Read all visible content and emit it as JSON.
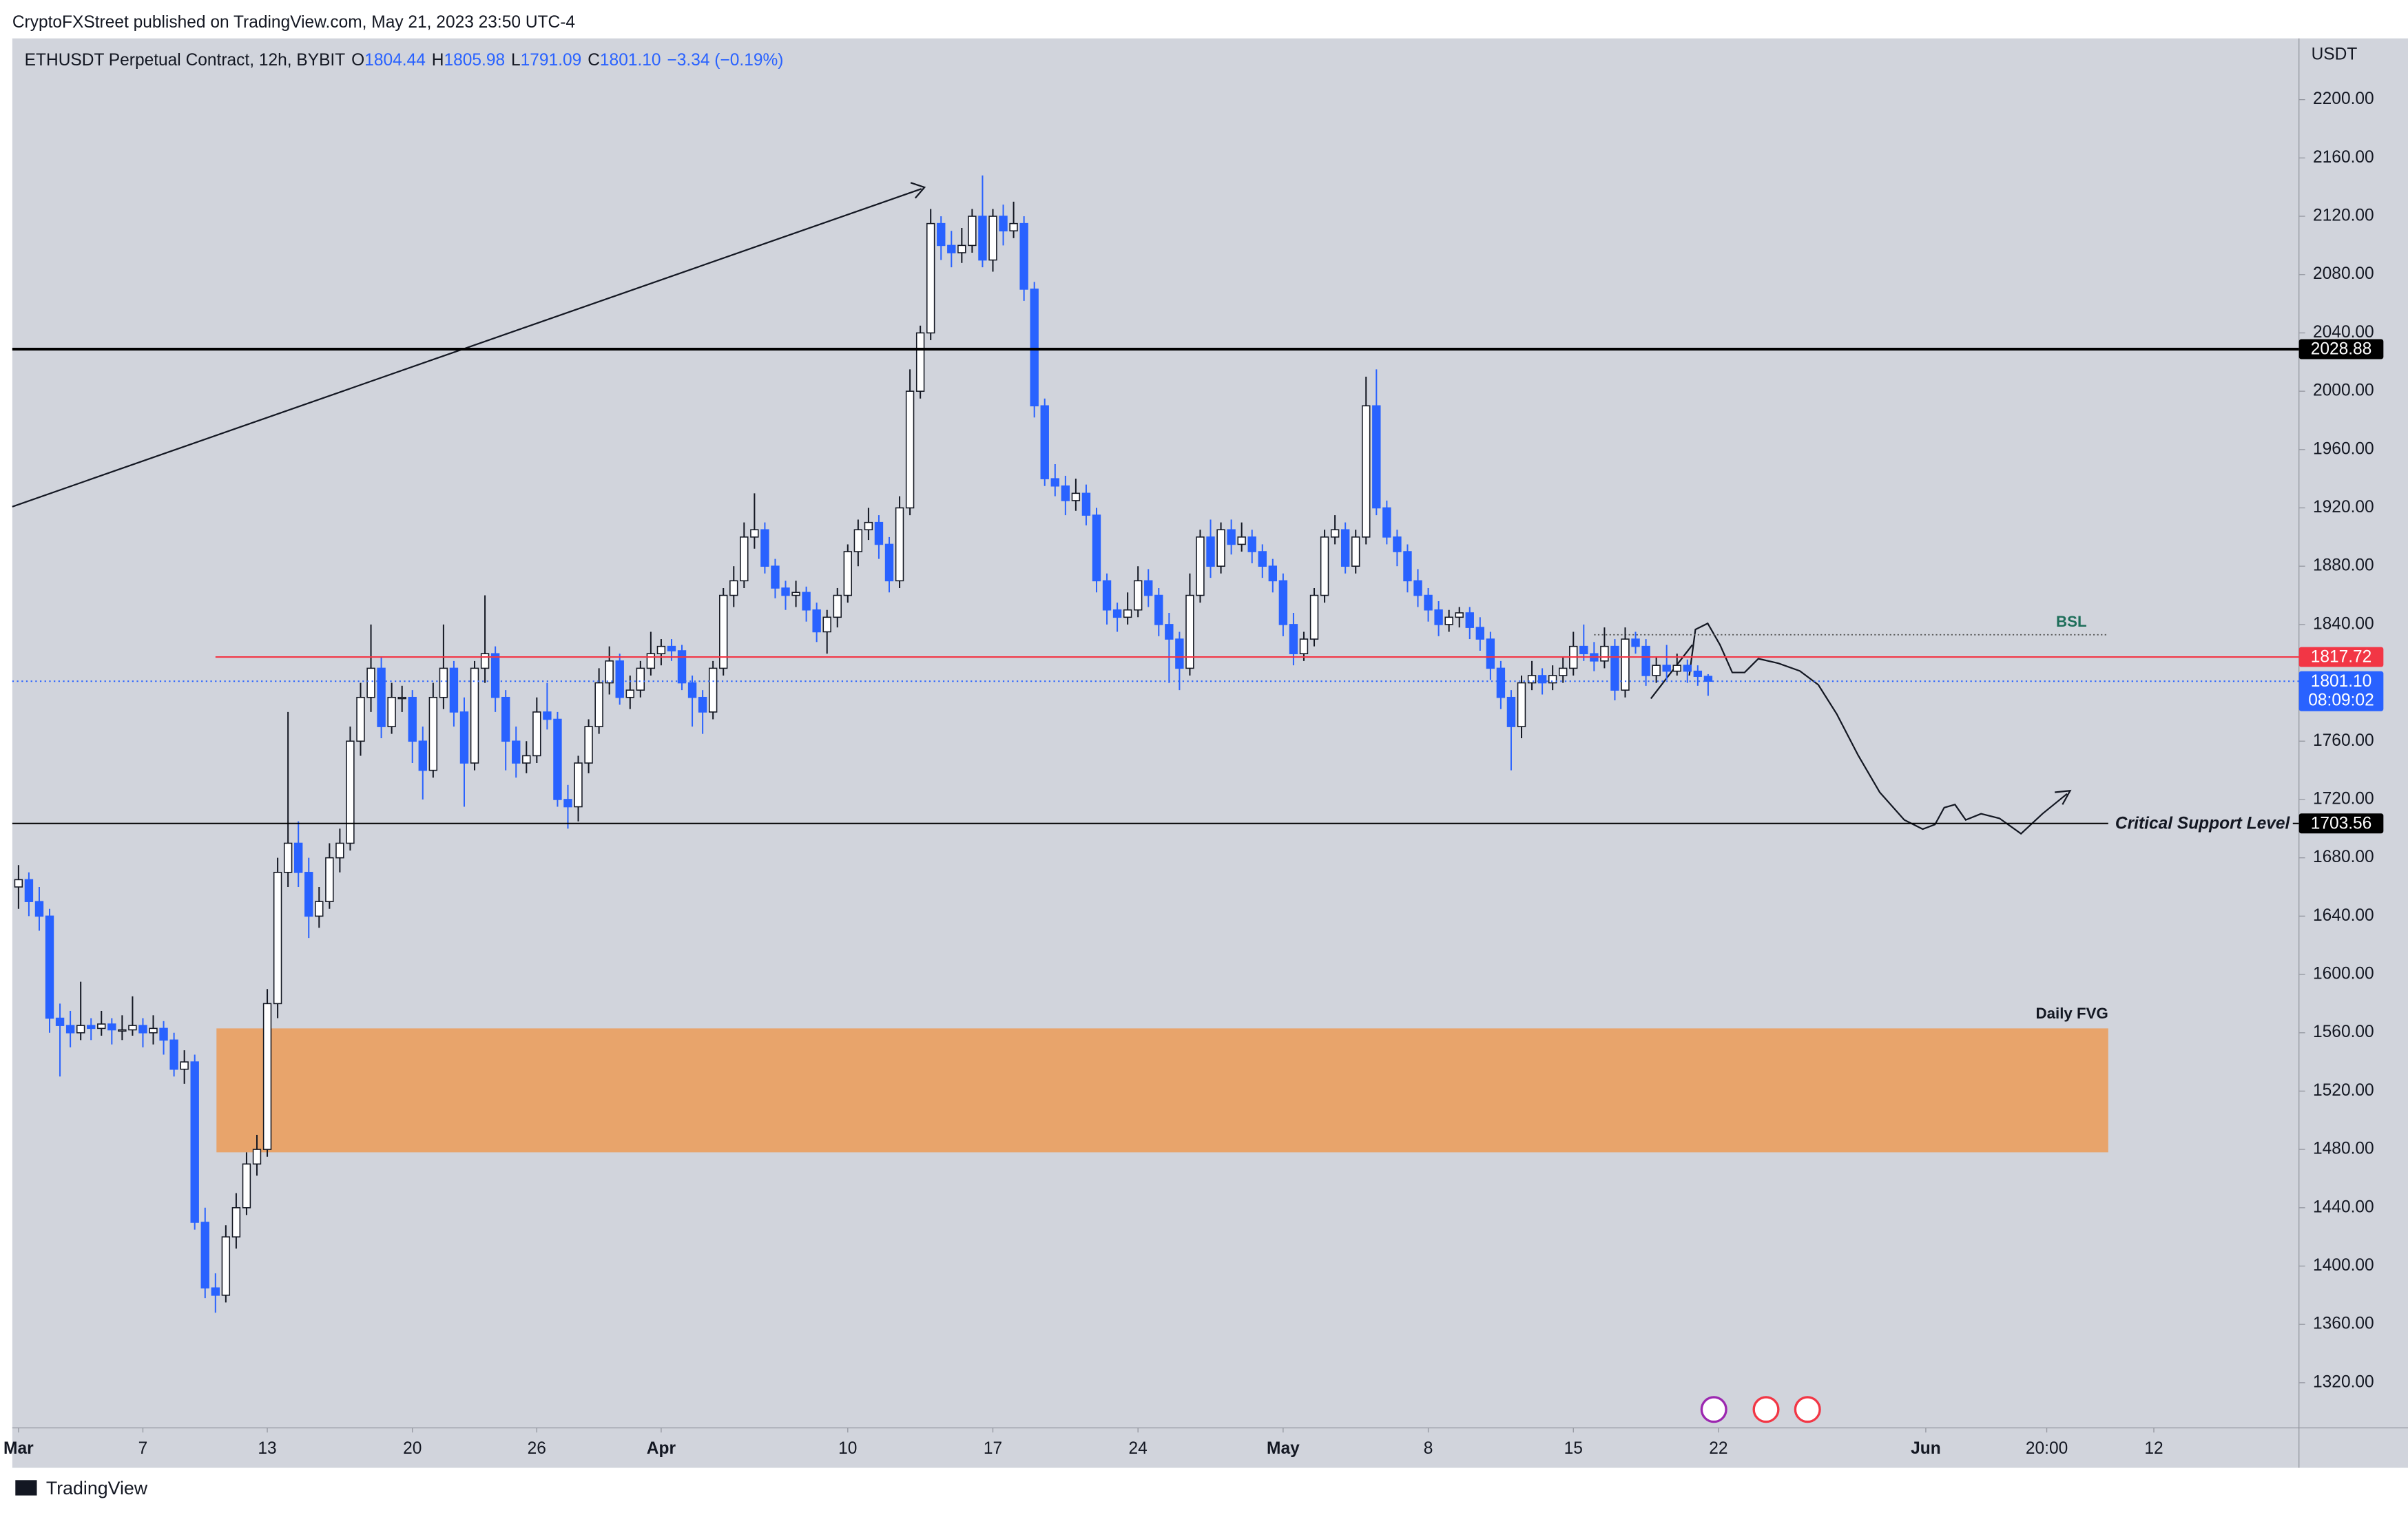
{
  "header": {
    "byline": "CryptoFXStreet published on TradingView.com, May 21, 2023 23:50 UTC-4",
    "brand": "TradingView"
  },
  "chart_data": {
    "type": "candlestick",
    "title": "ETHUSDT Perpetual Contract, 12h, BYBIT",
    "legend": [
      {
        "key": "O",
        "value": "1804.44"
      },
      {
        "key": "H",
        "value": "1805.98"
      },
      {
        "key": "L",
        "value": "1791.09"
      },
      {
        "key": "C",
        "value": "1801.10"
      }
    ],
    "change_label": "−3.34 (−0.19%)",
    "y_axis_label": "USDT",
    "up_color": "#ffffff",
    "down_color": "#2962ff",
    "wick_color": "#131722",
    "ylim": [
      1289,
      2242
    ],
    "yticks": [
      {
        "value": 1320,
        "label": "1320.00"
      },
      {
        "value": 1360,
        "label": "1360.00"
      },
      {
        "value": 1400,
        "label": "1400.00"
      },
      {
        "value": 1440,
        "label": "1440.00"
      },
      {
        "value": 1480,
        "label": "1480.00"
      },
      {
        "value": 1520,
        "label": "1520.00"
      },
      {
        "value": 1560,
        "label": "1560.00"
      },
      {
        "value": 1600,
        "label": "1600.00"
      },
      {
        "value": 1640,
        "label": "1640.00"
      },
      {
        "value": 1680,
        "label": "1680.00"
      },
      {
        "value": 1720,
        "label": "1720.00"
      },
      {
        "value": 1760,
        "label": "1760.00"
      },
      {
        "value": 1800,
        "label": "1800.00"
      },
      {
        "value": 1840,
        "label": "1840.00"
      },
      {
        "value": 1880,
        "label": "1880.00"
      },
      {
        "value": 1920,
        "label": "1920.00"
      },
      {
        "value": 1960,
        "label": "1960.00"
      },
      {
        "value": 2000,
        "label": "2000.00"
      },
      {
        "value": 2040,
        "label": "2040.00"
      },
      {
        "value": 2080,
        "label": "2080.00"
      },
      {
        "value": 2120,
        "label": "2120.00"
      },
      {
        "value": 2160,
        "label": "2160.00"
      },
      {
        "value": 2200,
        "label": "2200.00"
      }
    ],
    "xlim": [
      -0.6,
      220
    ],
    "xticks": [
      {
        "value": 0,
        "label": "Mar"
      },
      {
        "value": 12,
        "label": "7"
      },
      {
        "value": 24,
        "label": "13"
      },
      {
        "value": 38,
        "label": "20"
      },
      {
        "value": 50,
        "label": "26"
      },
      {
        "value": 62,
        "label": "Apr"
      },
      {
        "value": 80,
        "label": "10"
      },
      {
        "value": 94,
        "label": "17"
      },
      {
        "value": 108,
        "label": "24"
      },
      {
        "value": 122,
        "label": "May"
      },
      {
        "value": 136,
        "label": "8"
      },
      {
        "value": 150,
        "label": "15"
      },
      {
        "value": 164,
        "label": "22"
      },
      {
        "value": 184,
        "label": "Jun"
      },
      {
        "value": 195.67,
        "label": "20:00"
      },
      {
        "value": 206,
        "label": "12"
      }
    ],
    "grid": false,
    "levels": [
      {
        "value": 2028.88,
        "color": "#000000",
        "tag_color": "#000000"
      },
      {
        "value": 1817.72,
        "color": "#f23645",
        "tag_color": "#f23645",
        "from": 19
      },
      {
        "value": 1801.1,
        "label": "1801.10",
        "countdown": "08:09:02",
        "color": "#2962ff",
        "tag_color": "#2962ff",
        "dotted": true
      },
      {
        "value": 1703.56,
        "color": "#000000",
        "tag_color": "#000000",
        "to": 201.6,
        "name": "Critical Support Level"
      }
    ],
    "liquidity": {
      "name": "BSL",
      "value": 1833,
      "from": 152,
      "to": 201.6,
      "color": "#1e6e5a"
    },
    "zone": {
      "name": "Daily FVG",
      "low": 1478,
      "high": 1563,
      "from": 19.1,
      "to": 201.6,
      "color": "#e8a46b"
    },
    "candles": [
      [
        1660,
        1675,
        1645,
        1665
      ],
      [
        1665,
        1670,
        1640,
        1650
      ],
      [
        1650,
        1660,
        1630,
        1640
      ],
      [
        1640,
        1645,
        1560,
        1570
      ],
      [
        1570,
        1580,
        1530,
        1565
      ],
      [
        1565,
        1575,
        1550,
        1560
      ],
      [
        1560,
        1595,
        1555,
        1565
      ],
      [
        1565,
        1570,
        1555,
        1563
      ],
      [
        1563,
        1575,
        1558,
        1566
      ],
      [
        1566,
        1570,
        1552,
        1562
      ],
      [
        1562,
        1572,
        1555,
        1562
      ],
      [
        1562,
        1585,
        1558,
        1565
      ],
      [
        1565,
        1570,
        1550,
        1560
      ],
      [
        1560,
        1572,
        1552,
        1563
      ],
      [
        1563,
        1568,
        1545,
        1555
      ],
      [
        1555,
        1560,
        1530,
        1535
      ],
      [
        1535,
        1548,
        1525,
        1540
      ],
      [
        1540,
        1545,
        1425,
        1430
      ],
      [
        1430,
        1440,
        1378,
        1385
      ],
      [
        1385,
        1395,
        1368,
        1380
      ],
      [
        1380,
        1428,
        1375,
        1420
      ],
      [
        1420,
        1450,
        1412,
        1440
      ],
      [
        1440,
        1478,
        1435,
        1470
      ],
      [
        1470,
        1490,
        1462,
        1480
      ],
      [
        1480,
        1590,
        1475,
        1580
      ],
      [
        1580,
        1680,
        1570,
        1670
      ],
      [
        1670,
        1780,
        1660,
        1690
      ],
      [
        1690,
        1705,
        1660,
        1670
      ],
      [
        1670,
        1680,
        1625,
        1640
      ],
      [
        1640,
        1660,
        1632,
        1650
      ],
      [
        1650,
        1690,
        1645,
        1680
      ],
      [
        1680,
        1700,
        1670,
        1690
      ],
      [
        1690,
        1770,
        1685,
        1760
      ],
      [
        1760,
        1800,
        1750,
        1790
      ],
      [
        1790,
        1840,
        1780,
        1810
      ],
      [
        1810,
        1818,
        1762,
        1770
      ],
      [
        1770,
        1800,
        1765,
        1790
      ],
      [
        1790,
        1798,
        1780,
        1790
      ],
      [
        1790,
        1795,
        1745,
        1760
      ],
      [
        1760,
        1770,
        1720,
        1740
      ],
      [
        1740,
        1800,
        1735,
        1790
      ],
      [
        1790,
        1840,
        1782,
        1810
      ],
      [
        1810,
        1815,
        1770,
        1780
      ],
      [
        1780,
        1790,
        1715,
        1745
      ],
      [
        1745,
        1815,
        1740,
        1810
      ],
      [
        1810,
        1860,
        1800,
        1820
      ],
      [
        1820,
        1825,
        1780,
        1790
      ],
      [
        1790,
        1795,
        1740,
        1760
      ],
      [
        1760,
        1770,
        1735,
        1745
      ],
      [
        1745,
        1760,
        1738,
        1750
      ],
      [
        1750,
        1790,
        1745,
        1780
      ],
      [
        1780,
        1800,
        1768,
        1775
      ],
      [
        1775,
        1780,
        1715,
        1720
      ],
      [
        1720,
        1730,
        1700,
        1715
      ],
      [
        1715,
        1750,
        1705,
        1745
      ],
      [
        1745,
        1775,
        1738,
        1770
      ],
      [
        1770,
        1810,
        1765,
        1800
      ],
      [
        1800,
        1825,
        1792,
        1815
      ],
      [
        1815,
        1820,
        1785,
        1790
      ],
      [
        1790,
        1805,
        1782,
        1795
      ],
      [
        1795,
        1815,
        1790,
        1810
      ],
      [
        1810,
        1835,
        1805,
        1820
      ],
      [
        1820,
        1830,
        1812,
        1825
      ],
      [
        1825,
        1830,
        1815,
        1822
      ],
      [
        1822,
        1826,
        1795,
        1800
      ],
      [
        1800,
        1805,
        1770,
        1790
      ],
      [
        1790,
        1795,
        1765,
        1780
      ],
      [
        1780,
        1815,
        1775,
        1810
      ],
      [
        1810,
        1865,
        1805,
        1860
      ],
      [
        1860,
        1880,
        1852,
        1870
      ],
      [
        1870,
        1910,
        1865,
        1900
      ],
      [
        1900,
        1930,
        1892,
        1905
      ],
      [
        1905,
        1910,
        1875,
        1880
      ],
      [
        1880,
        1885,
        1858,
        1865
      ],
      [
        1865,
        1870,
        1850,
        1860
      ],
      [
        1860,
        1870,
        1852,
        1862
      ],
      [
        1862,
        1866,
        1842,
        1850
      ],
      [
        1850,
        1855,
        1828,
        1835
      ],
      [
        1835,
        1850,
        1820,
        1845
      ],
      [
        1845,
        1865,
        1838,
        1860
      ],
      [
        1860,
        1895,
        1855,
        1890
      ],
      [
        1890,
        1912,
        1880,
        1905
      ],
      [
        1905,
        1920,
        1898,
        1910
      ],
      [
        1910,
        1915,
        1885,
        1895
      ],
      [
        1895,
        1900,
        1862,
        1870
      ],
      [
        1870,
        1928,
        1865,
        1920
      ],
      [
        1920,
        2015,
        1915,
        2000
      ],
      [
        2000,
        2045,
        1995,
        2040
      ],
      [
        2040,
        2125,
        2035,
        2115
      ],
      [
        2115,
        2120,
        2090,
        2100
      ],
      [
        2100,
        2110,
        2085,
        2095
      ],
      [
        2095,
        2112,
        2088,
        2100
      ],
      [
        2100,
        2125,
        2095,
        2120
      ],
      [
        2120,
        2148,
        2085,
        2090
      ],
      [
        2090,
        2125,
        2082,
        2120
      ],
      [
        2120,
        2128,
        2100,
        2110
      ],
      [
        2110,
        2130,
        2105,
        2115
      ],
      [
        2115,
        2120,
        2062,
        2070
      ],
      [
        2070,
        2075,
        1982,
        1990
      ],
      [
        1990,
        1995,
        1935,
        1940
      ],
      [
        1940,
        1950,
        1928,
        1935
      ],
      [
        1935,
        1942,
        1915,
        1925
      ],
      [
        1925,
        1940,
        1918,
        1930
      ],
      [
        1930,
        1936,
        1908,
        1915
      ],
      [
        1915,
        1920,
        1862,
        1870
      ],
      [
        1870,
        1875,
        1840,
        1850
      ],
      [
        1850,
        1855,
        1835,
        1845
      ],
      [
        1845,
        1862,
        1840,
        1850
      ],
      [
        1850,
        1880,
        1845,
        1870
      ],
      [
        1870,
        1878,
        1852,
        1860
      ],
      [
        1860,
        1865,
        1832,
        1840
      ],
      [
        1840,
        1848,
        1800,
        1830
      ],
      [
        1830,
        1835,
        1795,
        1810
      ],
      [
        1810,
        1875,
        1805,
        1860
      ],
      [
        1860,
        1905,
        1855,
        1900
      ],
      [
        1900,
        1912,
        1872,
        1880
      ],
      [
        1880,
        1910,
        1875,
        1905
      ],
      [
        1905,
        1912,
        1888,
        1895
      ],
      [
        1895,
        1910,
        1890,
        1900
      ],
      [
        1900,
        1905,
        1882,
        1890
      ],
      [
        1890,
        1895,
        1872,
        1880
      ],
      [
        1880,
        1885,
        1862,
        1870
      ],
      [
        1870,
        1875,
        1832,
        1840
      ],
      [
        1840,
        1848,
        1812,
        1820
      ],
      [
        1820,
        1835,
        1815,
        1830
      ],
      [
        1830,
        1865,
        1825,
        1860
      ],
      [
        1860,
        1905,
        1855,
        1900
      ],
      [
        1900,
        1915,
        1895,
        1905
      ],
      [
        1905,
        1910,
        1875,
        1880
      ],
      [
        1880,
        1905,
        1875,
        1900
      ],
      [
        1900,
        2010,
        1895,
        1990
      ],
      [
        1990,
        2015,
        1915,
        1920
      ],
      [
        1920,
        1925,
        1895,
        1900
      ],
      [
        1900,
        1905,
        1880,
        1890
      ],
      [
        1890,
        1895,
        1862,
        1870
      ],
      [
        1870,
        1878,
        1852,
        1860
      ],
      [
        1860,
        1865,
        1842,
        1850
      ],
      [
        1850,
        1856,
        1832,
        1840
      ],
      [
        1840,
        1850,
        1835,
        1845
      ],
      [
        1845,
        1852,
        1838,
        1848
      ],
      [
        1848,
        1852,
        1830,
        1838
      ],
      [
        1838,
        1845,
        1822,
        1830
      ],
      [
        1830,
        1835,
        1802,
        1810
      ],
      [
        1810,
        1815,
        1782,
        1790
      ],
      [
        1790,
        1795,
        1740,
        1770
      ],
      [
        1770,
        1805,
        1762,
        1800
      ],
      [
        1800,
        1815,
        1795,
        1805
      ],
      [
        1805,
        1810,
        1792,
        1800
      ],
      [
        1800,
        1812,
        1795,
        1805
      ],
      [
        1805,
        1818,
        1800,
        1810
      ],
      [
        1810,
        1835,
        1805,
        1825
      ],
      [
        1825,
        1840,
        1815,
        1820
      ],
      [
        1820,
        1828,
        1808,
        1815
      ],
      [
        1815,
        1838,
        1810,
        1825
      ],
      [
        1825,
        1830,
        1788,
        1795
      ],
      [
        1795,
        1838,
        1790,
        1830
      ],
      [
        1830,
        1835,
        1820,
        1825
      ],
      [
        1825,
        1830,
        1798,
        1805
      ],
      [
        1805,
        1818,
        1800,
        1812
      ],
      [
        1812,
        1826,
        1802,
        1808
      ],
      [
        1808,
        1820,
        1805,
        1812
      ],
      [
        1812,
        1816,
        1800,
        1808
      ],
      [
        1808,
        1812,
        1798,
        1804.44
      ],
      [
        1804.44,
        1805.98,
        1791.09,
        1801.1
      ]
    ]
  }
}
